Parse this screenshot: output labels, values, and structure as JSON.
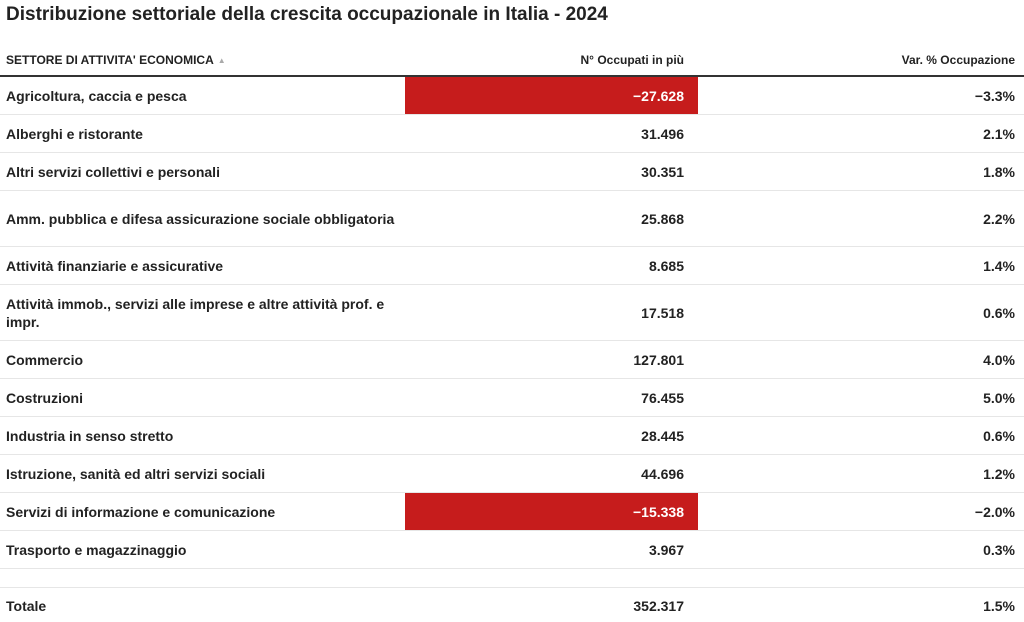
{
  "title": "Distribuzione settoriale della crescita occupazionale in Italia - 2024",
  "colors": {
    "negative": "#c61c1c",
    "text": "#222222",
    "rule": "#e6e6e6"
  },
  "chart_data": {
    "type": "table",
    "title": "Distribuzione settoriale della crescita occupazionale in Italia - 2024",
    "columns": [
      "SETTORE DI ATTIVITA' ECONOMICA",
      "N° Occupati in più",
      "Var. % Occupazione"
    ],
    "sort_icon": "sort-ascending-icon",
    "rows": [
      {
        "sector": "Agricoltura, caccia e pesca",
        "occupati": "−27.628",
        "value": -27628,
        "var": "−3.3%"
      },
      {
        "sector": "Alberghi e ristorante",
        "occupati": "31.496",
        "value": 31496,
        "var": "2.1%"
      },
      {
        "sector": "Altri servizi collettivi e personali",
        "occupati": "30.351",
        "value": 30351,
        "var": "1.8%"
      },
      {
        "sector": "Amm. pubblica e difesa assicurazione sociale obbligatoria",
        "occupati": "25.868",
        "value": 25868,
        "var": "2.2%"
      },
      {
        "sector": "Attività finanziarie e assicurative",
        "occupati": "8.685",
        "value": 8685,
        "var": "1.4%"
      },
      {
        "sector": "Attività immob., servizi alle imprese e altre attività prof. e impr.",
        "occupati": "17.518",
        "value": 17518,
        "var": "0.6%"
      },
      {
        "sector": "Commercio",
        "occupati": "127.801",
        "value": 127801,
        "var": "4.0%"
      },
      {
        "sector": "Costruzioni",
        "occupati": "76.455",
        "value": 76455,
        "var": "5.0%"
      },
      {
        "sector": "Industria in senso stretto",
        "occupati": "28.445",
        "value": 28445,
        "var": "0.6%"
      },
      {
        "sector": "Istruzione, sanità ed altri servizi sociali",
        "occupati": "44.696",
        "value": 44696,
        "var": "1.2%"
      },
      {
        "sector": "Servizi di informazione e comunicazione",
        "occupati": "−15.338",
        "value": -15338,
        "var": "−2.0%"
      },
      {
        "sector": "Trasporto e magazzinaggio",
        "occupati": "3.967",
        "value": 3967,
        "var": "0.3%"
      }
    ],
    "total": {
      "label": "Totale",
      "occupati": "352.317",
      "var": "1.5%"
    }
  }
}
